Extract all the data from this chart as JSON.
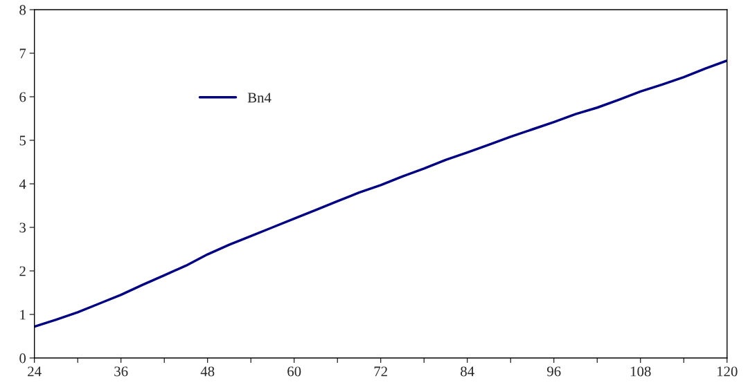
{
  "chart_data": {
    "type": "line",
    "x": [
      24,
      27,
      30,
      33,
      36,
      39,
      42,
      45,
      48,
      51,
      54,
      57,
      60,
      63,
      66,
      69,
      72,
      75,
      78,
      81,
      84,
      87,
      90,
      93,
      96,
      99,
      102,
      105,
      108,
      111,
      114,
      117,
      120
    ],
    "series": [
      {
        "name": "Bn4",
        "color": "#000080",
        "values": [
          0.72,
          0.88,
          1.05,
          1.25,
          1.45,
          1.68,
          1.9,
          2.12,
          2.38,
          2.6,
          2.8,
          3.0,
          3.2,
          3.4,
          3.6,
          3.8,
          3.97,
          4.17,
          4.35,
          4.55,
          4.72,
          4.9,
          5.08,
          5.25,
          5.42,
          5.6,
          5.75,
          5.93,
          6.12,
          6.28,
          6.45,
          6.65,
          6.83
        ]
      }
    ],
    "xlim": [
      24,
      120
    ],
    "xticks": [
      24,
      {
        "value": 30,
        "label": null
      },
      36,
      {
        "value": 42,
        "label": null
      },
      48,
      {
        "value": 54,
        "label": null
      },
      60,
      {
        "value": 66,
        "label": null
      },
      72,
      {
        "value": 78,
        "label": null
      },
      84,
      {
        "value": 90,
        "label": null
      },
      96,
      {
        "value": 102,
        "label": null
      },
      108,
      {
        "value": 114,
        "label": null
      },
      120
    ],
    "ylim": [
      0,
      8
    ],
    "yticks": [
      0,
      1,
      2,
      3,
      4,
      5,
      6,
      7,
      8
    ],
    "grid": false,
    "legend": "top left",
    "marker": "none",
    "line_style": "solid"
  }
}
